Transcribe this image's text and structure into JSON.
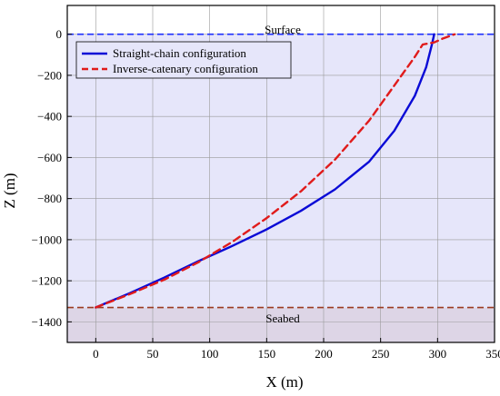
{
  "chart_data": {
    "type": "line",
    "xlabel": "X (m)",
    "ylabel": "Z (m)",
    "xlim": [
      -25,
      350
    ],
    "ylim": [
      -1500,
      140
    ],
    "xticks": [
      0,
      50,
      100,
      150,
      200,
      250,
      300,
      350
    ],
    "yticks": [
      0,
      -200,
      -400,
      -600,
      -800,
      -1000,
      -1200,
      -1400
    ],
    "grid": true,
    "legend": "top-left",
    "surface_level": 0,
    "seabed_level": -1330,
    "annotations": {
      "surface": "Surface",
      "seabed": "Seabed"
    },
    "colors": {
      "water": "#e6e6fa",
      "seabed": "#ddd5e6",
      "surface_line": "#1f2fff",
      "seabed_line": "#9b3b20"
    },
    "series": [
      {
        "name": "Straight-chain configuration",
        "color": "#0a0ad6",
        "style": "solid",
        "x": [
          0,
          30,
          60,
          90,
          120,
          150,
          180,
          210,
          240,
          262,
          280,
          290,
          295,
          297
        ],
        "y": [
          -1330,
          -1260,
          -1185,
          -1105,
          -1030,
          -950,
          -860,
          -755,
          -620,
          -470,
          -300,
          -160,
          -50,
          0
        ]
      },
      {
        "name": "Inverse-catenary configuration",
        "color": "#e01b1b",
        "style": "dashed",
        "x": [
          0,
          30,
          60,
          90,
          120,
          150,
          180,
          210,
          240,
          262,
          280,
          287,
          297,
          305,
          315
        ],
        "y": [
          -1330,
          -1265,
          -1195,
          -1110,
          -1010,
          -895,
          -765,
          -610,
          -420,
          -250,
          -110,
          -50,
          -40,
          -20,
          0
        ]
      }
    ]
  }
}
